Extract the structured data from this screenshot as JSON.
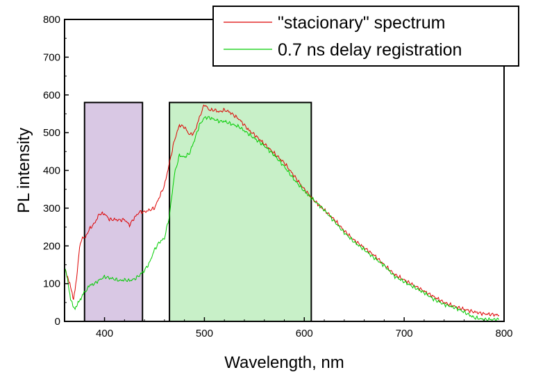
{
  "chart_data": {
    "type": "line",
    "xlabel": "Wavelength, nm",
    "ylabel": "PL intensity",
    "xlim": [
      360,
      800
    ],
    "ylim": [
      0,
      800
    ],
    "x_ticks": [
      400,
      500,
      600,
      700,
      800
    ],
    "y_ticks": [
      0,
      100,
      200,
      300,
      400,
      500,
      600,
      700,
      800
    ],
    "grid": false,
    "legend_position": "top-right",
    "highlight_regions": [
      {
        "x": [
          380,
          438
        ],
        "y": [
          0,
          580
        ],
        "color": "#d9c8e4"
      },
      {
        "x": [
          465,
          607
        ],
        "y": [
          0,
          580
        ],
        "color": "#c8f0c8"
      }
    ],
    "series": [
      {
        "name": "\"stacionary\" spectrum",
        "color": "#dd0000",
        "x": [
          360,
          363,
          366,
          369,
          372,
          375,
          378,
          381,
          385,
          390,
          395,
          400,
          405,
          410,
          415,
          420,
          425,
          430,
          435,
          440,
          445,
          450,
          455,
          460,
          465,
          470,
          475,
          480,
          485,
          490,
          495,
          500,
          505,
          510,
          515,
          520,
          525,
          530,
          535,
          540,
          545,
          550,
          560,
          570,
          580,
          590,
          600,
          610,
          620,
          630,
          640,
          650,
          660,
          670,
          680,
          690,
          700,
          710,
          720,
          730,
          740,
          750,
          760,
          770,
          780,
          790,
          795
        ],
        "values": [
          140,
          120,
          90,
          60,
          110,
          200,
          220,
          225,
          245,
          260,
          285,
          285,
          270,
          270,
          268,
          270,
          255,
          275,
          290,
          290,
          295,
          300,
          330,
          360,
          420,
          480,
          520,
          515,
          495,
          500,
          540,
          575,
          560,
          560,
          555,
          560,
          555,
          545,
          535,
          520,
          505,
          495,
          470,
          445,
          420,
          385,
          350,
          320,
          295,
          270,
          240,
          215,
          195,
          175,
          150,
          125,
          110,
          95,
          80,
          65,
          50,
          40,
          32,
          25,
          20,
          18,
          16
        ]
      },
      {
        "name": "0.7 ns delay registration",
        "color": "#00cc00",
        "x": [
          360,
          363,
          366,
          369,
          372,
          375,
          378,
          381,
          385,
          390,
          395,
          400,
          405,
          410,
          415,
          420,
          425,
          430,
          435,
          440,
          445,
          450,
          455,
          460,
          465,
          470,
          475,
          480,
          485,
          490,
          495,
          500,
          505,
          510,
          515,
          520,
          525,
          530,
          535,
          540,
          545,
          550,
          560,
          570,
          580,
          590,
          600,
          610,
          620,
          630,
          640,
          650,
          660,
          670,
          680,
          690,
          700,
          710,
          720,
          730,
          740,
          750,
          760,
          770,
          780,
          790,
          795
        ],
        "values": [
          145,
          110,
          60,
          35,
          40,
          55,
          70,
          80,
          95,
          100,
          110,
          118,
          115,
          112,
          108,
          110,
          108,
          112,
          122,
          135,
          155,
          190,
          210,
          220,
          280,
          390,
          440,
          435,
          445,
          480,
          520,
          540,
          540,
          535,
          530,
          530,
          525,
          520,
          515,
          505,
          495,
          485,
          465,
          440,
          410,
          375,
          345,
          320,
          295,
          265,
          235,
          210,
          190,
          168,
          148,
          120,
          105,
          90,
          76,
          58,
          45,
          37,
          25,
          10,
          5,
          5,
          5
        ]
      }
    ]
  }
}
